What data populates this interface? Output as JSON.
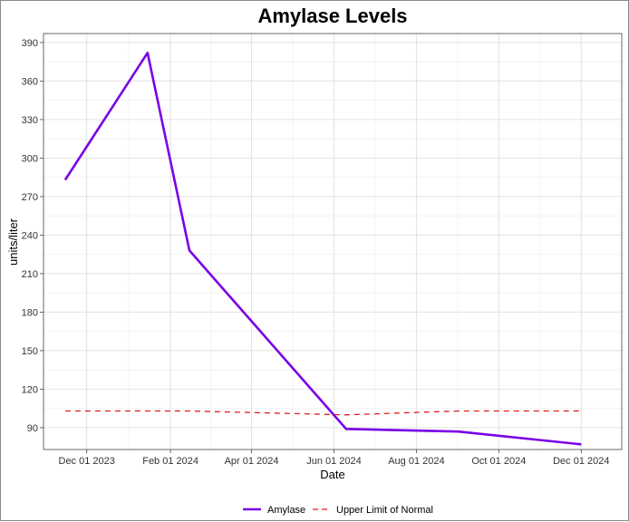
{
  "chart_data": {
    "type": "line",
    "title": "Amylase Levels",
    "xlabel": "Date",
    "ylabel": "units/liter",
    "x_tick_labels": [
      "Dec 01 2023",
      "Feb 01 2024",
      "Apr 01 2024",
      "Jun 01 2024",
      "Aug 01 2024",
      "Oct 01 2024",
      "Dec 01 2024"
    ],
    "x_ticks": [
      "2023-12-01",
      "2024-02-01",
      "2024-04-01",
      "2024-06-01",
      "2024-08-01",
      "2024-10-01",
      "2024-12-01"
    ],
    "y_ticks": [
      90,
      120,
      150,
      180,
      210,
      240,
      270,
      300,
      330,
      360,
      390
    ],
    "ylim": [
      73,
      397
    ],
    "xlim": [
      "2023-10-30",
      "2024-12-31"
    ],
    "grid": true,
    "legend_position": "bottom",
    "series": [
      {
        "name": "Amylase",
        "color": "#7a00e6",
        "style": "solid",
        "points": [
          {
            "x": "2023-11-15",
            "y": 283
          },
          {
            "x": "2024-01-15",
            "y": 382
          },
          {
            "x": "2024-02-15",
            "y": 228
          },
          {
            "x": "2024-06-10",
            "y": 89
          },
          {
            "x": "2024-09-01",
            "y": 87
          },
          {
            "x": "2024-12-01",
            "y": 77
          }
        ]
      },
      {
        "name": "Upper Limit of Normal",
        "color": "#e41a1c",
        "style": "dashed",
        "points": [
          {
            "x": "2023-11-15",
            "y": 103
          },
          {
            "x": "2024-02-15",
            "y": 103
          },
          {
            "x": "2024-06-10",
            "y": 100
          },
          {
            "x": "2024-09-01",
            "y": 103
          },
          {
            "x": "2024-12-01",
            "y": 103
          }
        ]
      }
    ]
  }
}
